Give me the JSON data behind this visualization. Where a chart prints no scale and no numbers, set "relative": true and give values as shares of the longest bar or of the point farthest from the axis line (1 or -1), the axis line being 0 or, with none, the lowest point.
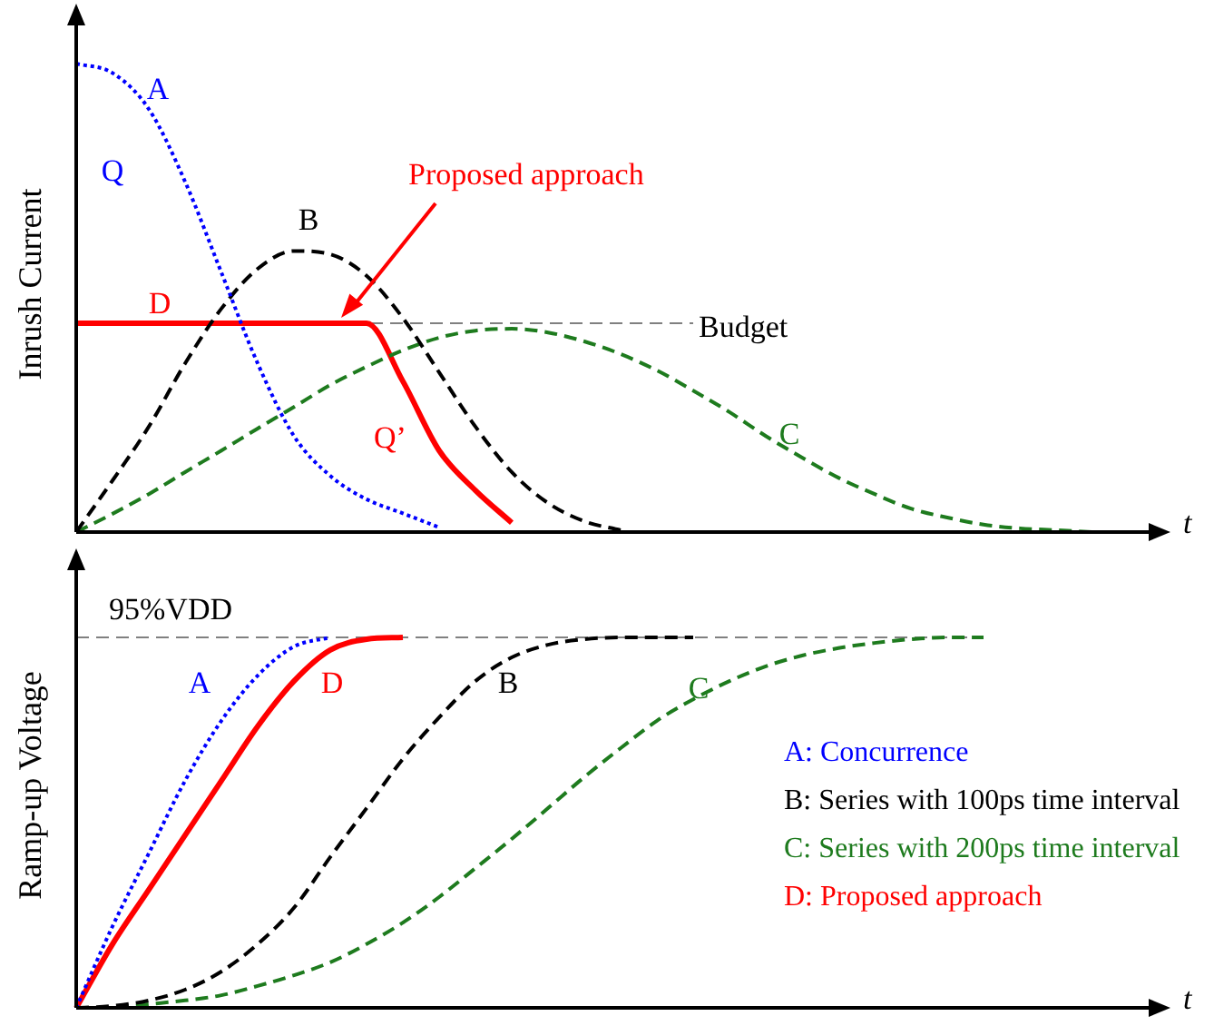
{
  "chart_data": [
    {
      "type": "line",
      "relative": true,
      "ylabel": "Inrush Current",
      "xlabel": "t",
      "tick_labels": false,
      "legend": false,
      "categories": [
        null,
        null,
        null,
        null,
        null,
        null,
        null,
        null,
        null,
        null,
        null,
        null,
        null,
        null,
        null,
        null,
        null,
        null,
        null,
        null,
        null,
        null,
        null,
        null,
        null,
        null,
        null,
        null,
        null,
        null
      ],
      "series": [
        {
          "name": "A",
          "color": "#0000ff",
          "line_style": "dotted",
          "values": [
            1,
            0.98,
            0.903,
            0.748,
            0.554,
            0.36,
            0.205,
            0.12,
            0.07,
            0.04,
            0.01,
            null,
            null,
            null,
            null,
            null,
            null,
            null,
            null,
            null,
            null,
            null,
            null,
            null,
            null,
            null,
            null,
            null,
            null,
            null
          ]
        },
        {
          "name": "B",
          "color": "#000000",
          "line_style": "dashed",
          "values": [
            0,
            0.11,
            0.225,
            0.36,
            0.477,
            0.562,
            0.6,
            0.593,
            0.547,
            0.457,
            0.341,
            0.225,
            0.128,
            0.062,
            0.023,
            0.004,
            null,
            null,
            null,
            null,
            null,
            null,
            null,
            null,
            null,
            null,
            null,
            null,
            null,
            null
          ]
        },
        {
          "name": "C",
          "color": "#1e7b1e",
          "line_style": "dashed",
          "values": [
            0,
            0.039,
            0.081,
            0.128,
            0.174,
            0.221,
            0.267,
            0.314,
            0.353,
            0.388,
            0.415,
            0.43,
            0.434,
            0.426,
            0.407,
            0.38,
            0.345,
            0.302,
            0.256,
            0.205,
            0.159,
            0.116,
            0.081,
            0.05,
            0.031,
            0.016,
            0.008,
            0.004,
            0,
            null
          ]
        },
        {
          "name": "D",
          "color": "#ff0000",
          "line_style": "solid",
          "values": [
            0.446,
            0.446,
            0.446,
            0.446,
            0.446,
            0.446,
            0.446,
            0.446,
            0.446,
            0.322,
            0.174,
            0.089,
            0.02,
            null,
            null,
            null,
            null,
            null,
            null,
            null,
            null,
            null,
            null,
            null,
            null,
            null,
            null,
            null,
            null,
            null
          ]
        }
      ],
      "ref_lines": [
        {
          "axis": "y",
          "value": 0.446,
          "label": "Budget",
          "color": "#808080",
          "line_style": "dashed"
        }
      ],
      "annotations": [
        "Q",
        "Q’",
        "Proposed approach"
      ]
    },
    {
      "type": "line",
      "relative": true,
      "ylabel": "Ramp-up Voltage",
      "xlabel": "t",
      "tick_labels": false,
      "legend": "right",
      "categories": [
        null,
        null,
        null,
        null,
        null,
        null,
        null,
        null,
        null,
        null,
        null,
        null,
        null,
        null,
        null,
        null,
        null,
        null,
        null,
        null,
        null,
        null,
        null,
        null,
        null,
        null,
        null,
        null,
        null,
        null
      ],
      "series": [
        {
          "name": "A: Concurrence",
          "color": "#0000ff",
          "line_style": "dotted",
          "values": [
            0,
            0.22,
            0.417,
            0.613,
            0.775,
            0.897,
            0.975,
            1,
            null,
            null,
            null,
            null,
            null,
            null,
            null,
            null,
            null,
            null,
            null,
            null,
            null,
            null,
            null,
            null,
            null,
            null,
            null,
            null,
            null,
            null
          ]
        },
        {
          "name": "B: Series with 100ps time interval",
          "color": "#000000",
          "line_style": "dashed",
          "values": [
            0,
            0.005,
            0.02,
            0.049,
            0.098,
            0.172,
            0.27,
            0.407,
            0.539,
            0.672,
            0.784,
            0.882,
            0.946,
            0.98,
            0.995,
            1,
            1,
            1,
            null,
            null,
            null,
            null,
            null,
            null,
            null,
            null,
            null,
            null,
            null,
            null
          ]
        },
        {
          "name": "C: Series with 200ps time interval",
          "color": "#1e7b1e",
          "line_style": "dashed",
          "values": [
            0,
            0,
            0.01,
            0.02,
            0.034,
            0.059,
            0.088,
            0.123,
            0.172,
            0.23,
            0.299,
            0.377,
            0.456,
            0.539,
            0.623,
            0.701,
            0.775,
            0.833,
            0.882,
            0.922,
            0.951,
            0.971,
            0.985,
            0.995,
            1,
            1,
            null,
            null,
            null,
            null
          ]
        },
        {
          "name": "D: Proposed approach",
          "color": "#ff0000",
          "line_style": "solid",
          "values": [
            0,
            0.172,
            0.319,
            0.466,
            0.613,
            0.76,
            0.882,
            0.966,
            0.995,
            1,
            null,
            null,
            null,
            null,
            null,
            null,
            null,
            null,
            null,
            null,
            null,
            null,
            null,
            null,
            null,
            null,
            null,
            null,
            null,
            null
          ]
        }
      ],
      "ref_lines": [
        {
          "axis": "y",
          "value": 1,
          "label": "95%VDD",
          "color": "#808080",
          "line_style": "dashed"
        }
      ],
      "annotations": [
        "A",
        "D",
        "B",
        "C"
      ]
    }
  ]
}
